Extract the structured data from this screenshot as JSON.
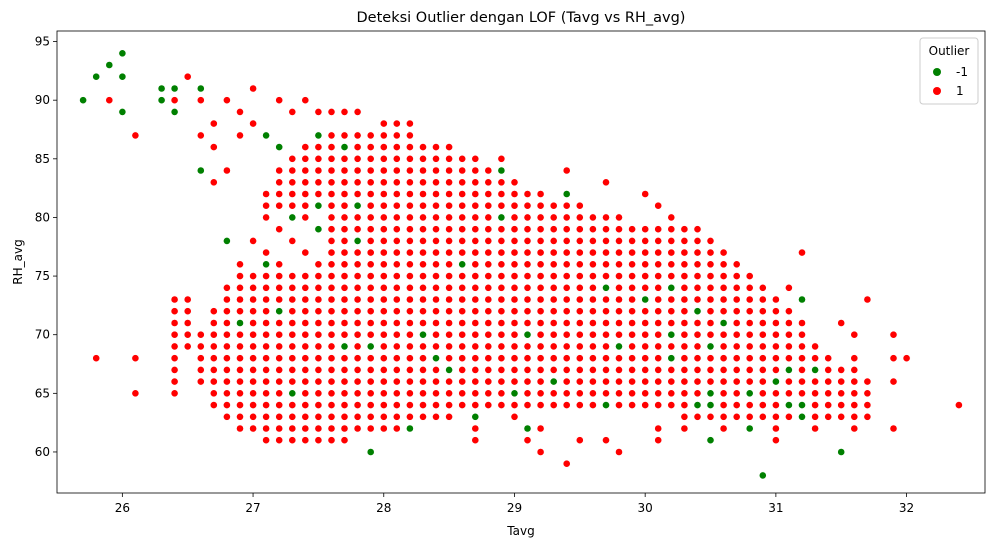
{
  "chart_data": {
    "type": "scatter",
    "title": "Deteksi Outlier dengan LOF (Tavg vs RH_avg)",
    "xlabel": "Tavg",
    "ylabel": "RH_avg",
    "xlim": [
      25.5,
      32.6
    ],
    "ylim": [
      56.5,
      95.9
    ],
    "xticks": [
      26,
      27,
      28,
      29,
      30,
      31,
      32
    ],
    "yticks": [
      60,
      65,
      70,
      75,
      80,
      85,
      90,
      95
    ],
    "grid": false,
    "legend": {
      "title": "Outlier",
      "placement": "top-right",
      "entries": [
        {
          "label": "-1",
          "color": "#008000"
        },
        {
          "label": "1",
          "color": "#ff0000"
        }
      ]
    },
    "series": [
      {
        "name": "-1",
        "color": "#008000",
        "points": [
          [
            25.7,
            90
          ],
          [
            25.8,
            92
          ],
          [
            25.9,
            93
          ],
          [
            26.0,
            94
          ],
          [
            26.0,
            92
          ],
          [
            26.0,
            89
          ],
          [
            26.3,
            91
          ],
          [
            26.3,
            90
          ],
          [
            26.4,
            91
          ],
          [
            26.4,
            89
          ],
          [
            26.6,
            91
          ],
          [
            26.6,
            84
          ],
          [
            26.8,
            78
          ],
          [
            26.9,
            71
          ],
          [
            27.1,
            87
          ],
          [
            27.1,
            76
          ],
          [
            27.2,
            86
          ],
          [
            27.2,
            72
          ],
          [
            27.3,
            80
          ],
          [
            27.3,
            65
          ],
          [
            27.5,
            87
          ],
          [
            27.5,
            81
          ],
          [
            27.5,
            79
          ],
          [
            27.7,
            86
          ],
          [
            27.7,
            69
          ],
          [
            27.8,
            81
          ],
          [
            27.8,
            78
          ],
          [
            27.9,
            69
          ],
          [
            27.9,
            60
          ],
          [
            28.2,
            62
          ],
          [
            28.3,
            70
          ],
          [
            28.4,
            68
          ],
          [
            28.5,
            67
          ],
          [
            28.6,
            76
          ],
          [
            28.7,
            63
          ],
          [
            28.9,
            84
          ],
          [
            28.9,
            80
          ],
          [
            29.0,
            65
          ],
          [
            29.1,
            70
          ],
          [
            29.1,
            62
          ],
          [
            29.3,
            66
          ],
          [
            29.4,
            82
          ],
          [
            29.7,
            74
          ],
          [
            29.7,
            64
          ],
          [
            29.8,
            69
          ],
          [
            30.0,
            73
          ],
          [
            30.2,
            74
          ],
          [
            30.2,
            68
          ],
          [
            30.2,
            70
          ],
          [
            30.4,
            72
          ],
          [
            30.4,
            64
          ],
          [
            30.5,
            69
          ],
          [
            30.5,
            65
          ],
          [
            30.5,
            64
          ],
          [
            30.5,
            61
          ],
          [
            30.6,
            71
          ],
          [
            30.8,
            65
          ],
          [
            30.8,
            62
          ],
          [
            30.9,
            58
          ],
          [
            31.0,
            66
          ],
          [
            31.1,
            67
          ],
          [
            31.1,
            64
          ],
          [
            31.2,
            73
          ],
          [
            31.2,
            64
          ],
          [
            31.2,
            63
          ],
          [
            31.3,
            67
          ],
          [
            31.5,
            60
          ]
        ]
      },
      {
        "name": "1",
        "color": "#ff0000",
        "points": []
      }
    ]
  }
}
